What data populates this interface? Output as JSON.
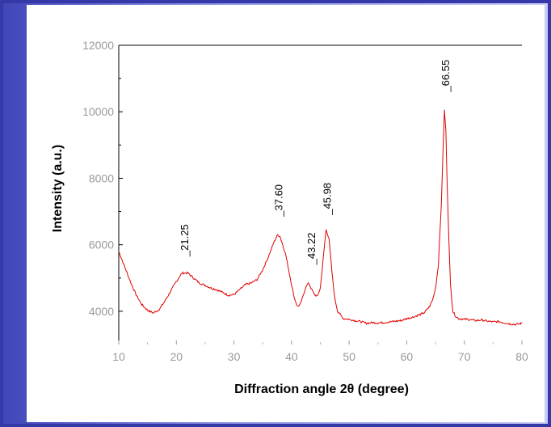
{
  "chart_data": {
    "type": "line",
    "xlabel": "Diffraction angle 2θ (degree)",
    "ylabel": "Intensity (a.u.)",
    "xlim": [
      10,
      80
    ],
    "ylim": [
      3000,
      12000
    ],
    "x_ticks": [
      10,
      20,
      30,
      40,
      50,
      60,
      70,
      80
    ],
    "y_ticks": [
      4000,
      6000,
      8000,
      10000,
      12000
    ],
    "grid": false,
    "line_color": "#e00000",
    "series": [
      {
        "x": [
          10,
          11,
          12,
          13,
          14,
          15,
          16,
          17,
          18,
          19,
          20,
          21,
          22,
          23,
          24,
          25,
          26,
          27,
          28,
          29,
          30,
          31,
          32,
          33,
          34,
          35,
          36,
          37,
          37.6,
          38,
          39,
          40,
          40.5,
          41,
          41.5,
          42,
          42.5,
          43,
          43.5,
          44,
          44.5,
          45,
          45.5,
          46,
          46.5,
          47,
          47.5,
          48,
          49,
          50,
          51,
          52,
          53,
          54,
          55,
          56,
          57,
          58,
          59,
          60,
          61,
          62,
          63,
          64,
          64.5,
          65,
          65.5,
          66,
          66.3,
          66.55,
          66.8,
          67,
          67.3,
          67.6,
          68,
          68.5,
          69,
          70,
          71,
          72,
          73,
          74,
          75,
          76,
          77,
          78,
          79,
          80
        ],
        "y": [
          5800,
          5350,
          4900,
          4500,
          4200,
          4030,
          3950,
          4050,
          4300,
          4600,
          4900,
          5150,
          5150,
          5000,
          4850,
          4780,
          4700,
          4650,
          4570,
          4480,
          4500,
          4650,
          4800,
          4850,
          4950,
          5250,
          5650,
          6100,
          6300,
          6250,
          5700,
          4800,
          4400,
          4150,
          4200,
          4450,
          4750,
          4850,
          4650,
          4500,
          4450,
          4700,
          5600,
          6450,
          6200,
          5200,
          4400,
          4000,
          3780,
          3760,
          3720,
          3690,
          3640,
          3660,
          3650,
          3660,
          3680,
          3700,
          3720,
          3780,
          3820,
          3880,
          3950,
          4150,
          4350,
          4700,
          5400,
          7200,
          8800,
          10050,
          9400,
          8000,
          6200,
          4800,
          4000,
          3850,
          3780,
          3760,
          3750,
          3720,
          3740,
          3700,
          3680,
          3690,
          3650,
          3620,
          3600,
          3640
        ]
      }
    ],
    "annotations": [
      {
        "x": 21.25,
        "text": "21.25"
      },
      {
        "x": 37.6,
        "text": "37.60"
      },
      {
        "x": 43.22,
        "text": "43.22"
      },
      {
        "x": 45.98,
        "text": "45.98"
      },
      {
        "x": 66.55,
        "text": "66.55"
      }
    ]
  }
}
